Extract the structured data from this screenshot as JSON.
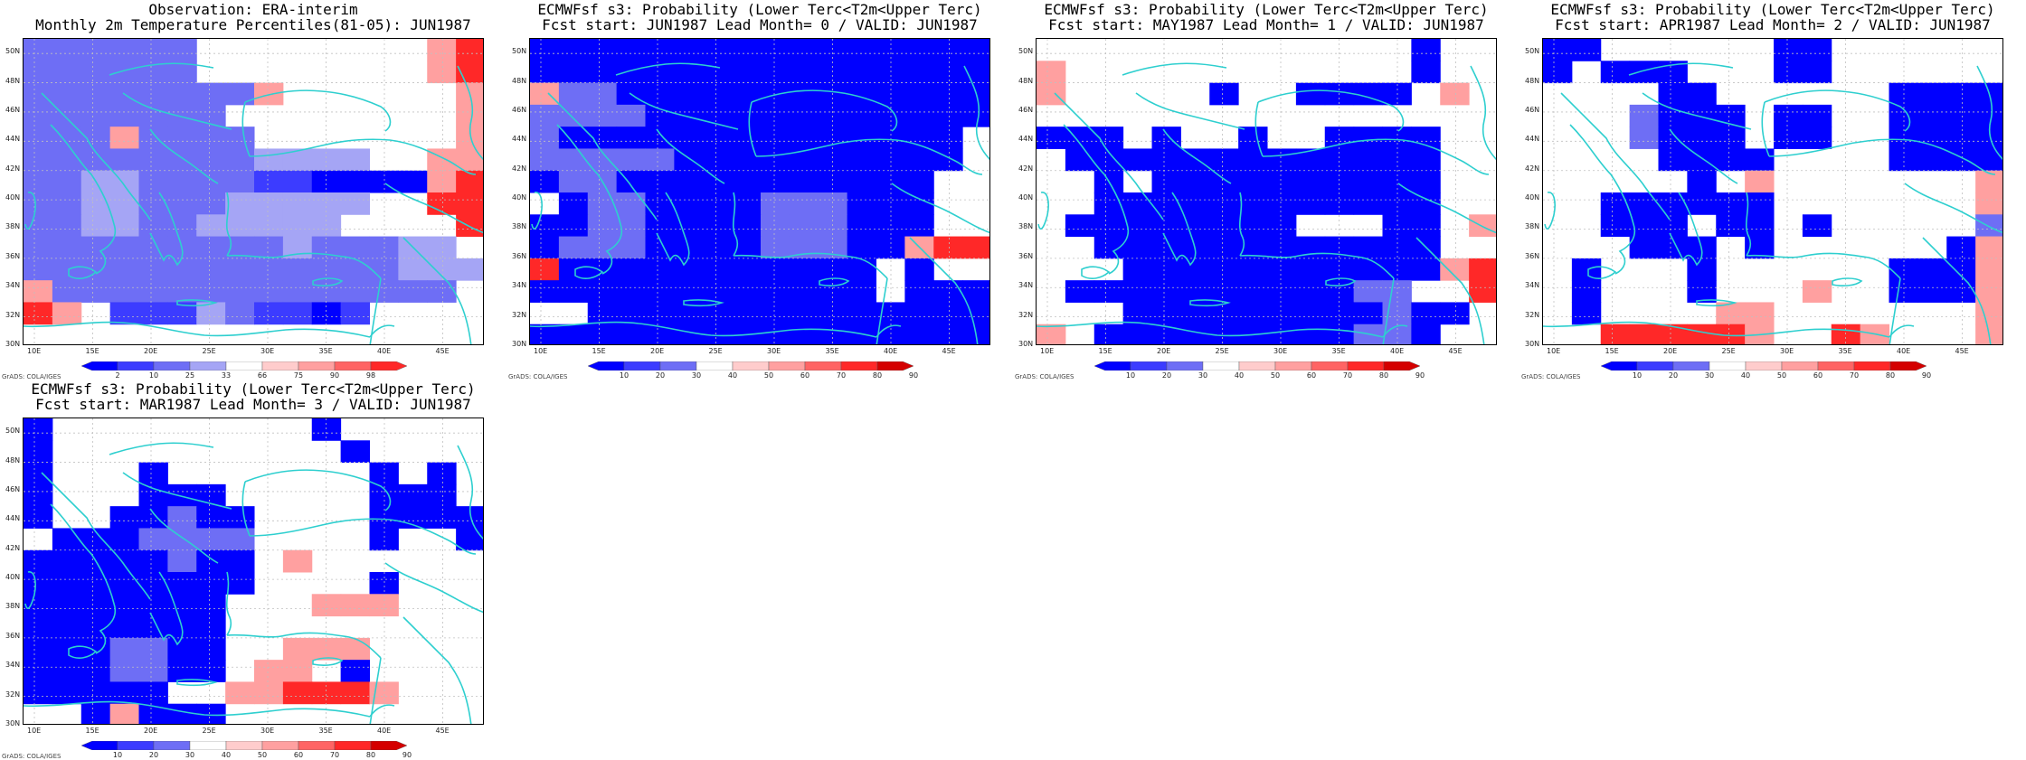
{
  "colors": {
    "blue_dark": "#0000ff",
    "blue_mid": "#3c3cff",
    "blue_light": "#6e6ef5",
    "blue_pale": "#a5a5f5",
    "pink": "#ffa0a0",
    "red_mid": "#ff6464",
    "red": "#ff2828",
    "coast": "#2ecfcf",
    "grid": "#c0c0c0"
  },
  "lat_labels": [
    "30N",
    "32N",
    "34N",
    "36N",
    "38N",
    "40N",
    "42N",
    "44N",
    "46N",
    "48N",
    "50N"
  ],
  "lon_labels": [
    "10E",
    "15E",
    "20E",
    "25E",
    "30E",
    "35E",
    "40E",
    "45E"
  ],
  "credit": "GrADS: COLA/IGES",
  "panels": [
    {
      "title1": "Observation: ERA-interim",
      "title2": "Monthly 2m Temperature Percentiles(81-05): JUN1987",
      "cb_labels": [
        "2",
        "10",
        "25",
        "33",
        "66",
        "75",
        "90",
        "98"
      ],
      "cb_colors": [
        "#0000ff",
        "#3c3cff",
        "#6e6ef5",
        "#a5a5f5",
        "#ffffff",
        "#ffcccc",
        "#ffa0a0",
        "#ff6464",
        "#ff2828"
      ],
      "grid": [
        "LLLLLLWWWWWWWWPR",
        "LLLLLLWWWWWWWWPR",
        "LLLLLLLLPWWWWWWP",
        "LLLLLLLWWWWWWWWP",
        "LLLPLLLLWWWWWWWP",
        "LLLLLLLLEEEEWWPP",
        "LLEELLLLBBDDDDPR",
        "LLEELLLEEEEEWWRR",
        "LLEELLEEEEEWWWWR",
        "LLLLLLLLLELLLEEW",
        "LLLLLLLLLLLLLEEE",
        "PLLLLLLLLLLLLLLW",
        "RPWBBBELBBDBWWWW",
        "WWWWWWWWWWWWWWWW"
      ]
    },
    {
      "title1": "ECMWFsf s3: Probability (Lower Terc<T2m<Upper Terc)",
      "title2": "Fcst start: JUN1987  Lead Month= 0 / VALID: JUN1987",
      "cb_labels": [
        "10",
        "20",
        "30",
        "40",
        "50",
        "60",
        "70",
        "80",
        "90"
      ],
      "cb_colors": [
        "#0000ff",
        "#3c3cff",
        "#6e6ef5",
        "#ffffff",
        "#ffcccc",
        "#ffa0a0",
        "#ff6464",
        "#ff2828",
        "#d40000"
      ],
      "grid": [
        "DDDDDDDDDDDDDDDD",
        "DDDDDDDDDDDDDDDD",
        "PLLDDDDDDDDDDDDD",
        "LLLLDDDDDDDDDDDD",
        "LDDDDDDDDDDDDDDW",
        "LLLLLDDDDDDDDDDW",
        "DLLDDDDDDDDDDDWW",
        "WDLLDDDDLLLDDDWW",
        "DDLLDDDDLLLDDDWW",
        "DLLLDDDDLLLDDPRR",
        "RDDDDDDDDDDDWDWW",
        "DDDDDDDDDDDDWDDD",
        "WWDDDDDDDDDDDDDD",
        "DDDDDDDDDDDDDDDD"
      ]
    },
    {
      "title1": "ECMWFsf s3: Probability (Lower Terc<T2m<Upper Terc)",
      "title2": "Fcst start: MAY1987  Lead Month= 1 / VALID: JUN1987",
      "cb_labels": [
        "10",
        "20",
        "30",
        "40",
        "50",
        "60",
        "70",
        "80",
        "90"
      ],
      "cb_colors": [
        "#0000ff",
        "#3c3cff",
        "#6e6ef5",
        "#ffffff",
        "#ffcccc",
        "#ffa0a0",
        "#ff6464",
        "#ff2828",
        "#d40000"
      ],
      "grid": [
        "WWWWWWWWWWWWWDWW",
        "PWWWWWWWWWWWWDWW",
        "PWWWWWDWWDDDDWPW",
        "WWWWWWWWWWWWWWWW",
        "DDDWDWWDWWDDDDWW",
        "WDDDDDDDDDDDDDWW",
        "WWDWDDDDDDDDDDWW",
        "WWDDDDDDDDDDDDWW",
        "WDDDDDDDDWWWDDWP",
        "WWDDDDDDDDDDDDWW",
        "WWWDDDDDDDDDDDPR",
        "WDDDDDDDDDDLLWWR",
        "WWWDDDDDDDDDLDDW",
        "PWDDDDDDDDDLLDWW"
      ]
    },
    {
      "title1": "ECMWFsf s3: Probability (Lower Terc<T2m<Upper Terc)",
      "title2": "Fcst start: APR1987  Lead Month= 2 / VALID: JUN1987",
      "cb_labels": [
        "10",
        "20",
        "30",
        "40",
        "50",
        "60",
        "70",
        "80",
        "90"
      ],
      "cb_colors": [
        "#0000ff",
        "#3c3cff",
        "#6e6ef5",
        "#ffffff",
        "#ffcccc",
        "#ffa0a0",
        "#ff6464",
        "#ff2828",
        "#d40000"
      ],
      "grid": [
        "DDWWWWWWDDWWWWWW",
        "DWDDDWWWDDWWWWWW",
        "WWWWDDWWWWWWDDDD",
        "WWWLDDDWDDWWDDDD",
        "WWWLDDDWDDWWDDDD",
        "WWWWDDDDWWWWDDDD",
        "WWWWWDWPWWWWWWWP",
        "WWDDDDDDWWWWWWWP",
        "WWDDDWDDWDWWWWWL",
        "WWWDDDWDWWWWWWDP",
        "WDWWWDWWWWWWDDDP",
        "WDWWWDWWWPWWDDDP",
        "WDWWWWPPWWWWWWWP",
        "WWRRRRRPWWRPWWWP"
      ]
    },
    {
      "title1": "ECMWFsf s3: Probability (Lower Terc<T2m<Upper Terc)",
      "title2": "Fcst start: MAR1987  Lead Month= 3 / VALID: JUN1987",
      "cb_labels": [
        "10",
        "20",
        "30",
        "40",
        "50",
        "60",
        "70",
        "80",
        "90"
      ],
      "cb_colors": [
        "#0000ff",
        "#3c3cff",
        "#6e6ef5",
        "#ffffff",
        "#ffcccc",
        "#ffa0a0",
        "#ff6464",
        "#ff2828",
        "#d40000"
      ],
      "grid": [
        "DWWWWWWWWWDWWWWW",
        "DWWWWWWWWWWDWWWW",
        "DWWWDWWWWWWWDWDW",
        "DWWWDDDWWWWWDDDW",
        "DWWDDLDDWWWWDDDD",
        "WDDDLLLLWWWWDWWD",
        "DDDDDLDDWPWWWWWW",
        "DDDDDDDDWWWWDWWW",
        "DDDDDDDWWWPPPWWW",
        "DDDDDDDWWWWWWWWW",
        "DDDLLDDWWPPPWWWW",
        "DDDLLDDWPPWDWWWW",
        "DDDDDWWPPRRRPWWW",
        "WWDPDDDWWWWWWWWW"
      ]
    }
  ]
}
